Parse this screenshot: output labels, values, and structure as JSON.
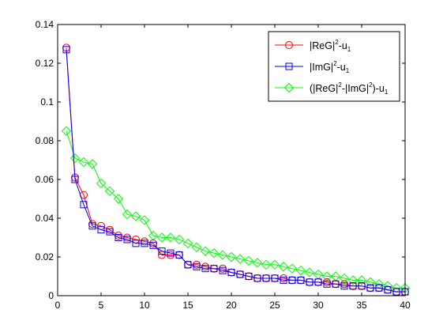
{
  "chart_data": {
    "type": "line",
    "title": "",
    "xlabel": "",
    "ylabel": "",
    "xlim": [
      0,
      40
    ],
    "ylim": [
      0,
      0.14
    ],
    "xticks": [
      0,
      5,
      10,
      15,
      20,
      25,
      30,
      35,
      40
    ],
    "yticks": [
      0,
      0.02,
      0.04,
      0.06,
      0.08,
      0.1,
      0.12,
      0.14
    ],
    "xtick_labels": [
      "0",
      "5",
      "10",
      "15",
      "20",
      "25",
      "30",
      "35",
      "40"
    ],
    "ytick_labels": [
      "0",
      "0.02",
      "0.04",
      "0.06",
      "0.08",
      "0.1",
      "0.12",
      "0.14"
    ],
    "grid": false,
    "legend_position": "top-right",
    "x": [
      1,
      2,
      3,
      4,
      5,
      6,
      7,
      8,
      9,
      10,
      11,
      12,
      13,
      14,
      15,
      16,
      17,
      18,
      19,
      20,
      21,
      22,
      23,
      24,
      25,
      26,
      27,
      28,
      29,
      30,
      31,
      32,
      33,
      34,
      35,
      36,
      37,
      38,
      39,
      40
    ],
    "series": [
      {
        "name": "|ReG|^2-u_1",
        "color": "#ff0000",
        "marker": "circle",
        "values": [
          0.128,
          0.061,
          0.052,
          0.037,
          0.036,
          0.034,
          0.031,
          0.03,
          0.029,
          0.028,
          0.027,
          0.021,
          0.021,
          0.021,
          0.016,
          0.016,
          0.015,
          0.014,
          0.014,
          0.012,
          0.011,
          0.01,
          0.009,
          0.009,
          0.009,
          0.009,
          0.008,
          0.008,
          0.007,
          0.007,
          0.007,
          0.006,
          0.006,
          0.005,
          0.005,
          0.004,
          0.004,
          0.003,
          0.002,
          0.002
        ]
      },
      {
        "name": "|ImG|^2-u_1",
        "color": "#0000ff",
        "marker": "square",
        "values": [
          0.127,
          0.06,
          0.047,
          0.036,
          0.034,
          0.033,
          0.03,
          0.029,
          0.027,
          0.027,
          0.026,
          0.023,
          0.022,
          0.021,
          0.016,
          0.015,
          0.014,
          0.014,
          0.013,
          0.012,
          0.011,
          0.01,
          0.009,
          0.009,
          0.009,
          0.008,
          0.008,
          0.008,
          0.007,
          0.007,
          0.006,
          0.006,
          0.005,
          0.005,
          0.005,
          0.004,
          0.004,
          0.003,
          0.002,
          0.002
        ]
      },
      {
        "name": "(|ReG|^2-|ImG|^2)-u_1",
        "color": "#00ff00",
        "marker": "diamond",
        "values": [
          0.085,
          0.071,
          0.069,
          0.068,
          0.058,
          0.054,
          0.05,
          0.042,
          0.041,
          0.039,
          0.031,
          0.03,
          0.03,
          0.029,
          0.027,
          0.025,
          0.023,
          0.022,
          0.021,
          0.02,
          0.019,
          0.018,
          0.017,
          0.016,
          0.016,
          0.015,
          0.014,
          0.013,
          0.012,
          0.011,
          0.01,
          0.01,
          0.009,
          0.008,
          0.008,
          0.007,
          0.006,
          0.005,
          0.004,
          0.004
        ]
      }
    ],
    "legend_entries": [
      {
        "base": "|ReG|",
        "sup": "2",
        "mid": "-u",
        "sub": "1",
        "tail": ""
      },
      {
        "base": "|ImG|",
        "sup": "2",
        "mid": "-u",
        "sub": "1",
        "tail": ""
      },
      {
        "base": "(|ReG|",
        "sup": "2",
        "mid": "-|ImG|",
        "sup2": "2",
        "mid2": ")-u",
        "sub": "1",
        "tail": ""
      }
    ]
  }
}
